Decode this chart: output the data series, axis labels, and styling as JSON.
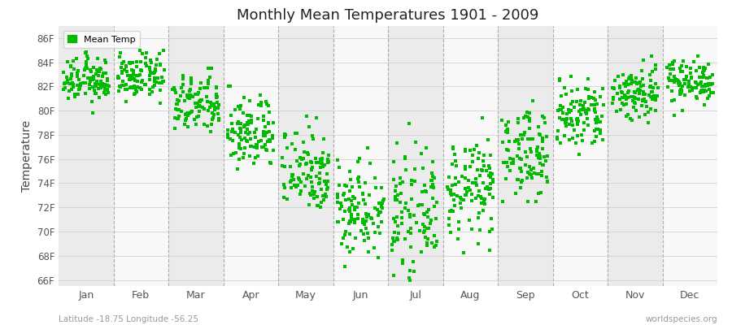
{
  "title": "Monthly Mean Temperatures 1901 - 2009",
  "ylabel": "Temperature",
  "xlabel_labels": [
    "Jan",
    "Feb",
    "Mar",
    "Apr",
    "May",
    "Jun",
    "Jul",
    "Aug",
    "Sep",
    "Oct",
    "Nov",
    "Dec"
  ],
  "ytick_labels": [
    "66F",
    "68F",
    "70F",
    "72F",
    "74F",
    "76F",
    "78F",
    "80F",
    "82F",
    "84F",
    "86F"
  ],
  "ytick_values": [
    66,
    68,
    70,
    72,
    74,
    76,
    78,
    80,
    82,
    84,
    86
  ],
  "ylim": [
    65.5,
    87.0
  ],
  "dot_color": "#00bb00",
  "background_color": "#ffffff",
  "plot_bg_even": "#ebebeb",
  "plot_bg_odd": "#f8f8f8",
  "legend_label": "Mean Temp",
  "footer_left": "Latitude -18.75 Longitude -56.25",
  "footer_right": "worldspecies.org",
  "years": 109,
  "monthly_means": [
    82.5,
    82.8,
    80.5,
    78.2,
    75.2,
    72.0,
    71.5,
    73.5,
    76.5,
    79.5,
    81.5,
    82.5
  ],
  "monthly_stds": [
    0.9,
    0.9,
    1.2,
    1.5,
    1.8,
    2.0,
    2.2,
    2.0,
    1.8,
    1.5,
    1.2,
    0.9
  ],
  "monthly_min": [
    79.5,
    79.0,
    76.5,
    73.5,
    70.5,
    65.5,
    65.0,
    67.5,
    72.5,
    74.5,
    78.0,
    79.5
  ],
  "monthly_max": [
    85.5,
    85.0,
    83.5,
    82.0,
    80.0,
    78.5,
    80.0,
    80.5,
    85.5,
    85.5,
    86.0,
    85.5
  ]
}
